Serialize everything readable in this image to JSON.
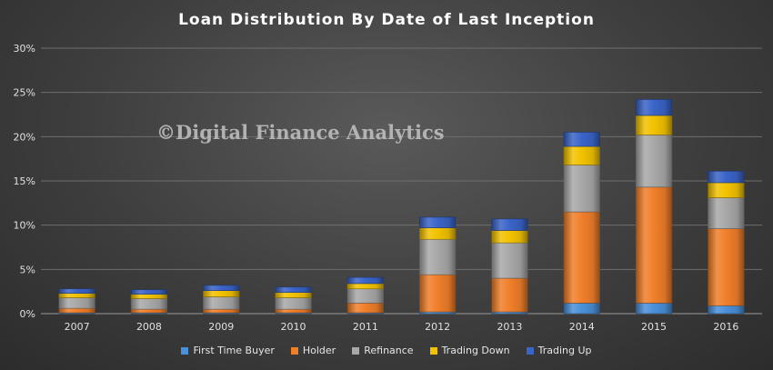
{
  "chart_data": {
    "type": "bar",
    "stacked": true,
    "title": "Loan Distribution  By Date of Last Inception",
    "watermark": "©Digital Finance Analytics",
    "categories": [
      "2007",
      "2008",
      "2009",
      "2010",
      "2011",
      "2012",
      "2013",
      "2014",
      "2015",
      "2016"
    ],
    "ylim": [
      0,
      30
    ],
    "yticks": [
      0,
      5,
      10,
      15,
      20,
      25,
      30
    ],
    "ytick_labels": [
      "0%",
      "5%",
      "10%",
      "15%",
      "20%",
      "25%",
      "30%"
    ],
    "grid": true,
    "legend_position": "bottom",
    "series": [
      {
        "name": "First Time Buyer",
        "color": "#4a90d9",
        "values": [
          0.1,
          0.1,
          0.1,
          0.1,
          0.1,
          0.2,
          0.2,
          1.2,
          1.2,
          0.9
        ]
      },
      {
        "name": "Holder",
        "color": "#f07f2a",
        "values": [
          0.5,
          0.4,
          0.4,
          0.4,
          1.1,
          4.2,
          3.8,
          10.3,
          13.1,
          8.7
        ]
      },
      {
        "name": "Refinance",
        "color": "#a8a8a8",
        "values": [
          1.2,
          1.2,
          1.4,
          1.3,
          1.6,
          4.0,
          4.0,
          5.3,
          5.9,
          3.5
        ]
      },
      {
        "name": "Trading Down",
        "color": "#f2c200",
        "values": [
          0.5,
          0.5,
          0.7,
          0.6,
          0.6,
          1.3,
          1.4,
          2.1,
          2.2,
          1.7
        ]
      },
      {
        "name": "Trading Up",
        "color": "#3a64c8",
        "values": [
          0.5,
          0.5,
          0.6,
          0.6,
          0.7,
          1.2,
          1.3,
          1.6,
          1.8,
          1.3
        ]
      }
    ]
  }
}
